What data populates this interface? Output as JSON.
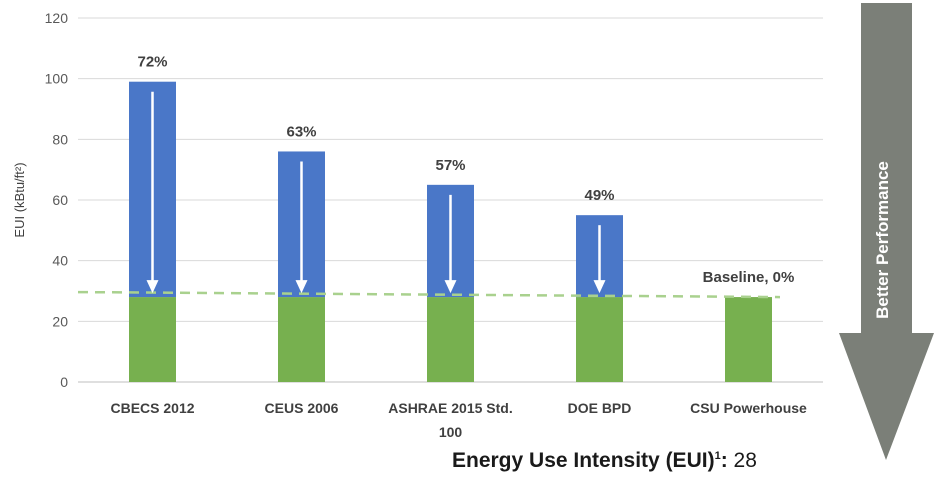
{
  "chart_data": {
    "type": "bar",
    "ylabel": "EUI (kBtu/ft²)",
    "ylim": [
      0,
      120
    ],
    "yticks": [
      0,
      20,
      40,
      60,
      80,
      100,
      120
    ],
    "grid": true,
    "categories": [
      {
        "line1": "CBECS 2012",
        "line2": ""
      },
      {
        "line1": "CEUS 2006",
        "line2": ""
      },
      {
        "line1": "ASHRAE 2015 Std.",
        "line2": "100"
      },
      {
        "line1": "DOE BPD",
        "line2": ""
      },
      {
        "line1": "CSU Powerhouse",
        "line2": ""
      }
    ],
    "series": [
      {
        "values": [
          28,
          28,
          28,
          28,
          28
        ],
        "color": "#77b04f"
      },
      {
        "values": [
          71,
          48,
          37,
          27,
          0
        ],
        "color": "#4a77c8"
      }
    ],
    "totals": [
      99,
      76,
      65,
      55,
      28
    ],
    "data_labels": [
      "72%",
      "63%",
      "57%",
      "49%",
      "Baseline, 0%"
    ],
    "baseline": {
      "value": 28,
      "style": "dashed",
      "color": "#a9d18e"
    },
    "down_arrows_on_bars": [
      true,
      true,
      true,
      true,
      false
    ],
    "side_arrow": {
      "label": "Better Performance",
      "color": "#7b7f78"
    }
  },
  "footer": {
    "label": "Energy Use Intensity (EUI)",
    "superscript": "1",
    "colon": ":",
    "value": "28"
  }
}
